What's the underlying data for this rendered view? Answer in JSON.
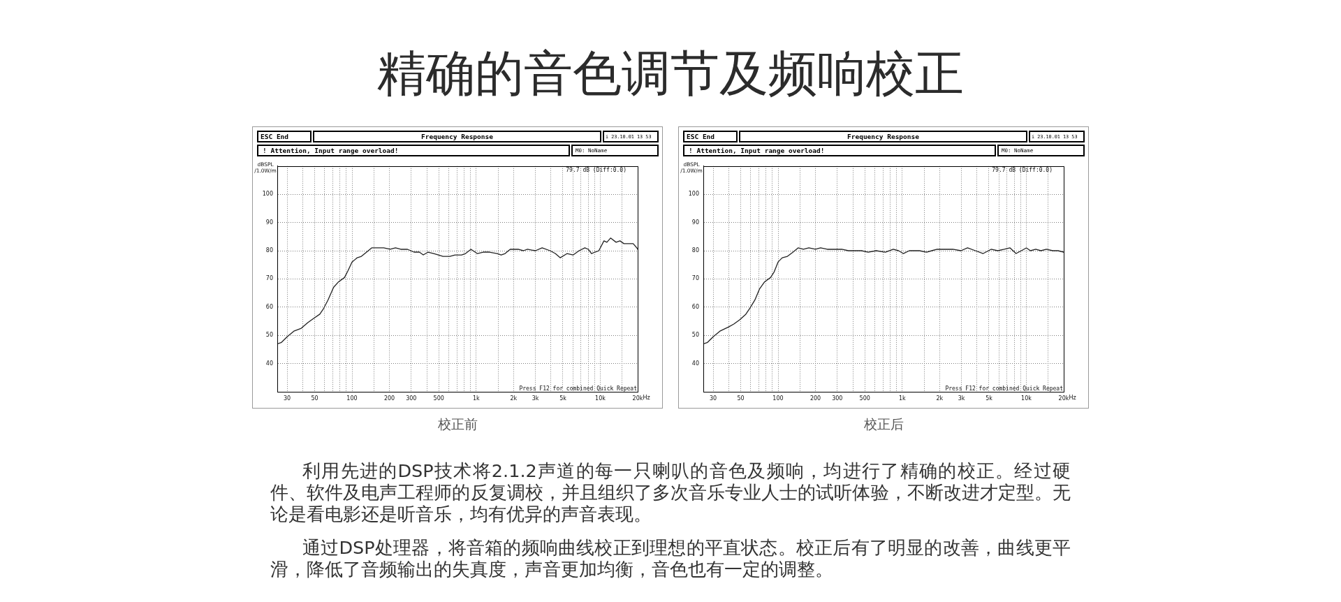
{
  "chart_data": [
    {
      "type": "other",
      "title": "精确的音色调节及频响校正"
    },
    {
      "type": "line",
      "title": "Frequency Response",
      "xlabel": "Hz",
      "ylabel": "dBSPL /1.0W/m",
      "annotations": [
        "ESC End",
        "i 23.10.01 13 53",
        "! Attention, Input range overload!",
        "M0: NoName",
        "79.7 dB (Diff:0.0)",
        "Press F12 for combined Quick Repeat",
        "校正前"
      ],
      "log": "x",
      "grid": true,
      "xlim": [
        25,
        20000
      ],
      "xticks": [
        30,
        {
          "value": 40,
          "label": null
        },
        50,
        {
          "value": 60,
          "label": null
        },
        {
          "value": 70,
          "label": null
        },
        {
          "value": 80,
          "label": null
        },
        {
          "value": 90,
          "label": null
        },
        100,
        {
          "value": 150,
          "label": null
        },
        200,
        300,
        {
          "value": 400,
          "label": null
        },
        500,
        {
          "value": 600,
          "label": null
        },
        {
          "value": 700,
          "label": null
        },
        {
          "value": 800,
          "label": null
        },
        {
          "value": 900,
          "label": null
        },
        {
          "value": 1000,
          "label": "1k"
        },
        {
          "value": 1500,
          "label": null
        },
        {
          "value": 2000,
          "label": "2k"
        },
        {
          "value": 3000,
          "label": "3k"
        },
        {
          "value": 4000,
          "label": null
        },
        {
          "value": 5000,
          "label": "5k"
        },
        {
          "value": 6000,
          "label": null
        },
        {
          "value": 7000,
          "label": null
        },
        {
          "value": 8000,
          "label": null
        },
        {
          "value": 9000,
          "label": null
        },
        {
          "value": 10000,
          "label": "10k"
        },
        {
          "value": 15000,
          "label": null
        },
        {
          "value": 20000,
          "label": "20k"
        }
      ],
      "ylim": [
        30,
        110
      ],
      "yticks": [
        40,
        50,
        60,
        70,
        80,
        90,
        100
      ],
      "series": [
        {
          "color": "#222222",
          "x": [
            25,
            27,
            30,
            34,
            39,
            44,
            49,
            55,
            59,
            64,
            71,
            78,
            87,
            93,
            100,
            110,
            119,
            131,
            144,
            159,
            180,
            203,
            224,
            247,
            280,
            316,
            349,
            375,
            410,
            456,
            541,
            613,
            675,
            763,
            821,
            908,
            1020,
            1140,
            1280,
            1480,
            1590,
            1710,
            1880,
            2180,
            2400,
            2590,
            3000,
            3400,
            3940,
            4340,
            4750,
            5410,
            6050,
            6740,
            7510,
            8000,
            8490,
            9050,
            9730,
            10700,
            11300,
            12100,
            13400,
            14400,
            15500,
            16600,
            18400,
            19700,
            20000
          ],
          "values": [
            47,
            47.5,
            49.5,
            51.5,
            52.5,
            54.5,
            56,
            57.5,
            59.5,
            62.5,
            67,
            69,
            70.5,
            73,
            76,
            77.5,
            78,
            79.5,
            81,
            81,
            81,
            80.5,
            81,
            80.5,
            80.5,
            79.5,
            79.5,
            78.5,
            79.5,
            79,
            78,
            78,
            78.5,
            78.5,
            79,
            80.5,
            79,
            79.5,
            79.5,
            79,
            78.5,
            79,
            80.5,
            80.5,
            80,
            80.5,
            80,
            81,
            80,
            79,
            77.5,
            79,
            78.5,
            80,
            81,
            80.5,
            79,
            79.5,
            80,
            83.5,
            83,
            84.5,
            83,
            83.5,
            82.5,
            82.5,
            82.5,
            81,
            80.5
          ]
        }
      ]
    },
    {
      "type": "line",
      "title": "Frequency Response",
      "xlabel": "Hz",
      "ylabel": "dBSPL /1.0W/m",
      "annotations": [
        "ESC End",
        "i 23.10.01 13 53",
        "! Attention, Input range overload!",
        "M0: NoName",
        "79.7 dB (Diff:0.0)",
        "Press F12 for combined Quick Repeat",
        "校正后"
      ],
      "log": "x",
      "grid": true,
      "xlim": [
        25,
        20000
      ],
      "xticks": [
        30,
        {
          "value": 40,
          "label": null
        },
        50,
        {
          "value": 60,
          "label": null
        },
        {
          "value": 70,
          "label": null
        },
        {
          "value": 80,
          "label": null
        },
        {
          "value": 90,
          "label": null
        },
        100,
        {
          "value": 150,
          "label": null
        },
        200,
        300,
        {
          "value": 400,
          "label": null
        },
        500,
        {
          "value": 600,
          "label": null
        },
        {
          "value": 700,
          "label": null
        },
        {
          "value": 800,
          "label": null
        },
        {
          "value": 900,
          "label": null
        },
        {
          "value": 1000,
          "label": "1k"
        },
        {
          "value": 1500,
          "label": null
        },
        {
          "value": 2000,
          "label": "2k"
        },
        {
          "value": 3000,
          "label": "3k"
        },
        {
          "value": 4000,
          "label": null
        },
        {
          "value": 5000,
          "label": "5k"
        },
        {
          "value": 6000,
          "label": null
        },
        {
          "value": 7000,
          "label": null
        },
        {
          "value": 8000,
          "label": null
        },
        {
          "value": 9000,
          "label": null
        },
        {
          "value": 10000,
          "label": "10k"
        },
        {
          "value": 15000,
          "label": null
        },
        {
          "value": 20000,
          "label": "20k"
        }
      ],
      "ylim": [
        30,
        110
      ],
      "yticks": [
        40,
        50,
        60,
        70,
        80,
        90,
        100
      ],
      "series": [
        {
          "color": "#222222",
          "x": [
            25,
            27,
            30,
            34,
            40,
            44,
            49,
            55,
            59,
            65,
            71,
            78,
            87,
            93,
            100,
            108,
            119,
            132,
            145,
            160,
            177,
            200,
            220,
            249,
            288,
            326,
            369,
            408,
            471,
            532,
            617,
            732,
            847,
            935,
            1020,
            1140,
            1380,
            1570,
            1730,
            1910,
            2320,
            2560,
            2970,
            3360,
            3890,
            4490,
            5200,
            5880,
            6640,
            7390,
            8260,
            9110,
            10000,
            10800,
            11900,
            13100,
            14500,
            16300,
            18000,
            20000
          ],
          "values": [
            47,
            47.5,
            49.5,
            51.5,
            53,
            54,
            55.5,
            57.5,
            59.5,
            62.5,
            66.5,
            69,
            70.5,
            72.5,
            76,
            77.5,
            78,
            79.5,
            81,
            80.5,
            81,
            80.5,
            81,
            80.5,
            80.5,
            80.5,
            80,
            80,
            80,
            79.5,
            80,
            79.5,
            80.5,
            80,
            79,
            80,
            80,
            79.5,
            80,
            80.5,
            80.5,
            80.5,
            80,
            81,
            80,
            79,
            80.5,
            80,
            80.5,
            81,
            79,
            80,
            81,
            80,
            80.5,
            80,
            80.5,
            80,
            80,
            79.5
          ]
        }
      ]
    },
    {
      "type": "other",
      "annotations": [
        "利用先进的DSP技术将2.1.2声道的每一只喇叭的音色及频响，均进行了精确的校正。经过硬件、软件及电声工程师的反复调校，并且组织了多次音乐专业人士的试听体验，不断改进才定型。无论是看电影还是听音乐，均有优异的声音表现。",
        "通过DSP处理器，将音箱的频响曲线校正到理想的平直状态。校正后有了明显的改善，曲线更平滑，降低了音频输出的失真度，声音更加均衡，音色也有一定的调整。"
      ]
    }
  ]
}
